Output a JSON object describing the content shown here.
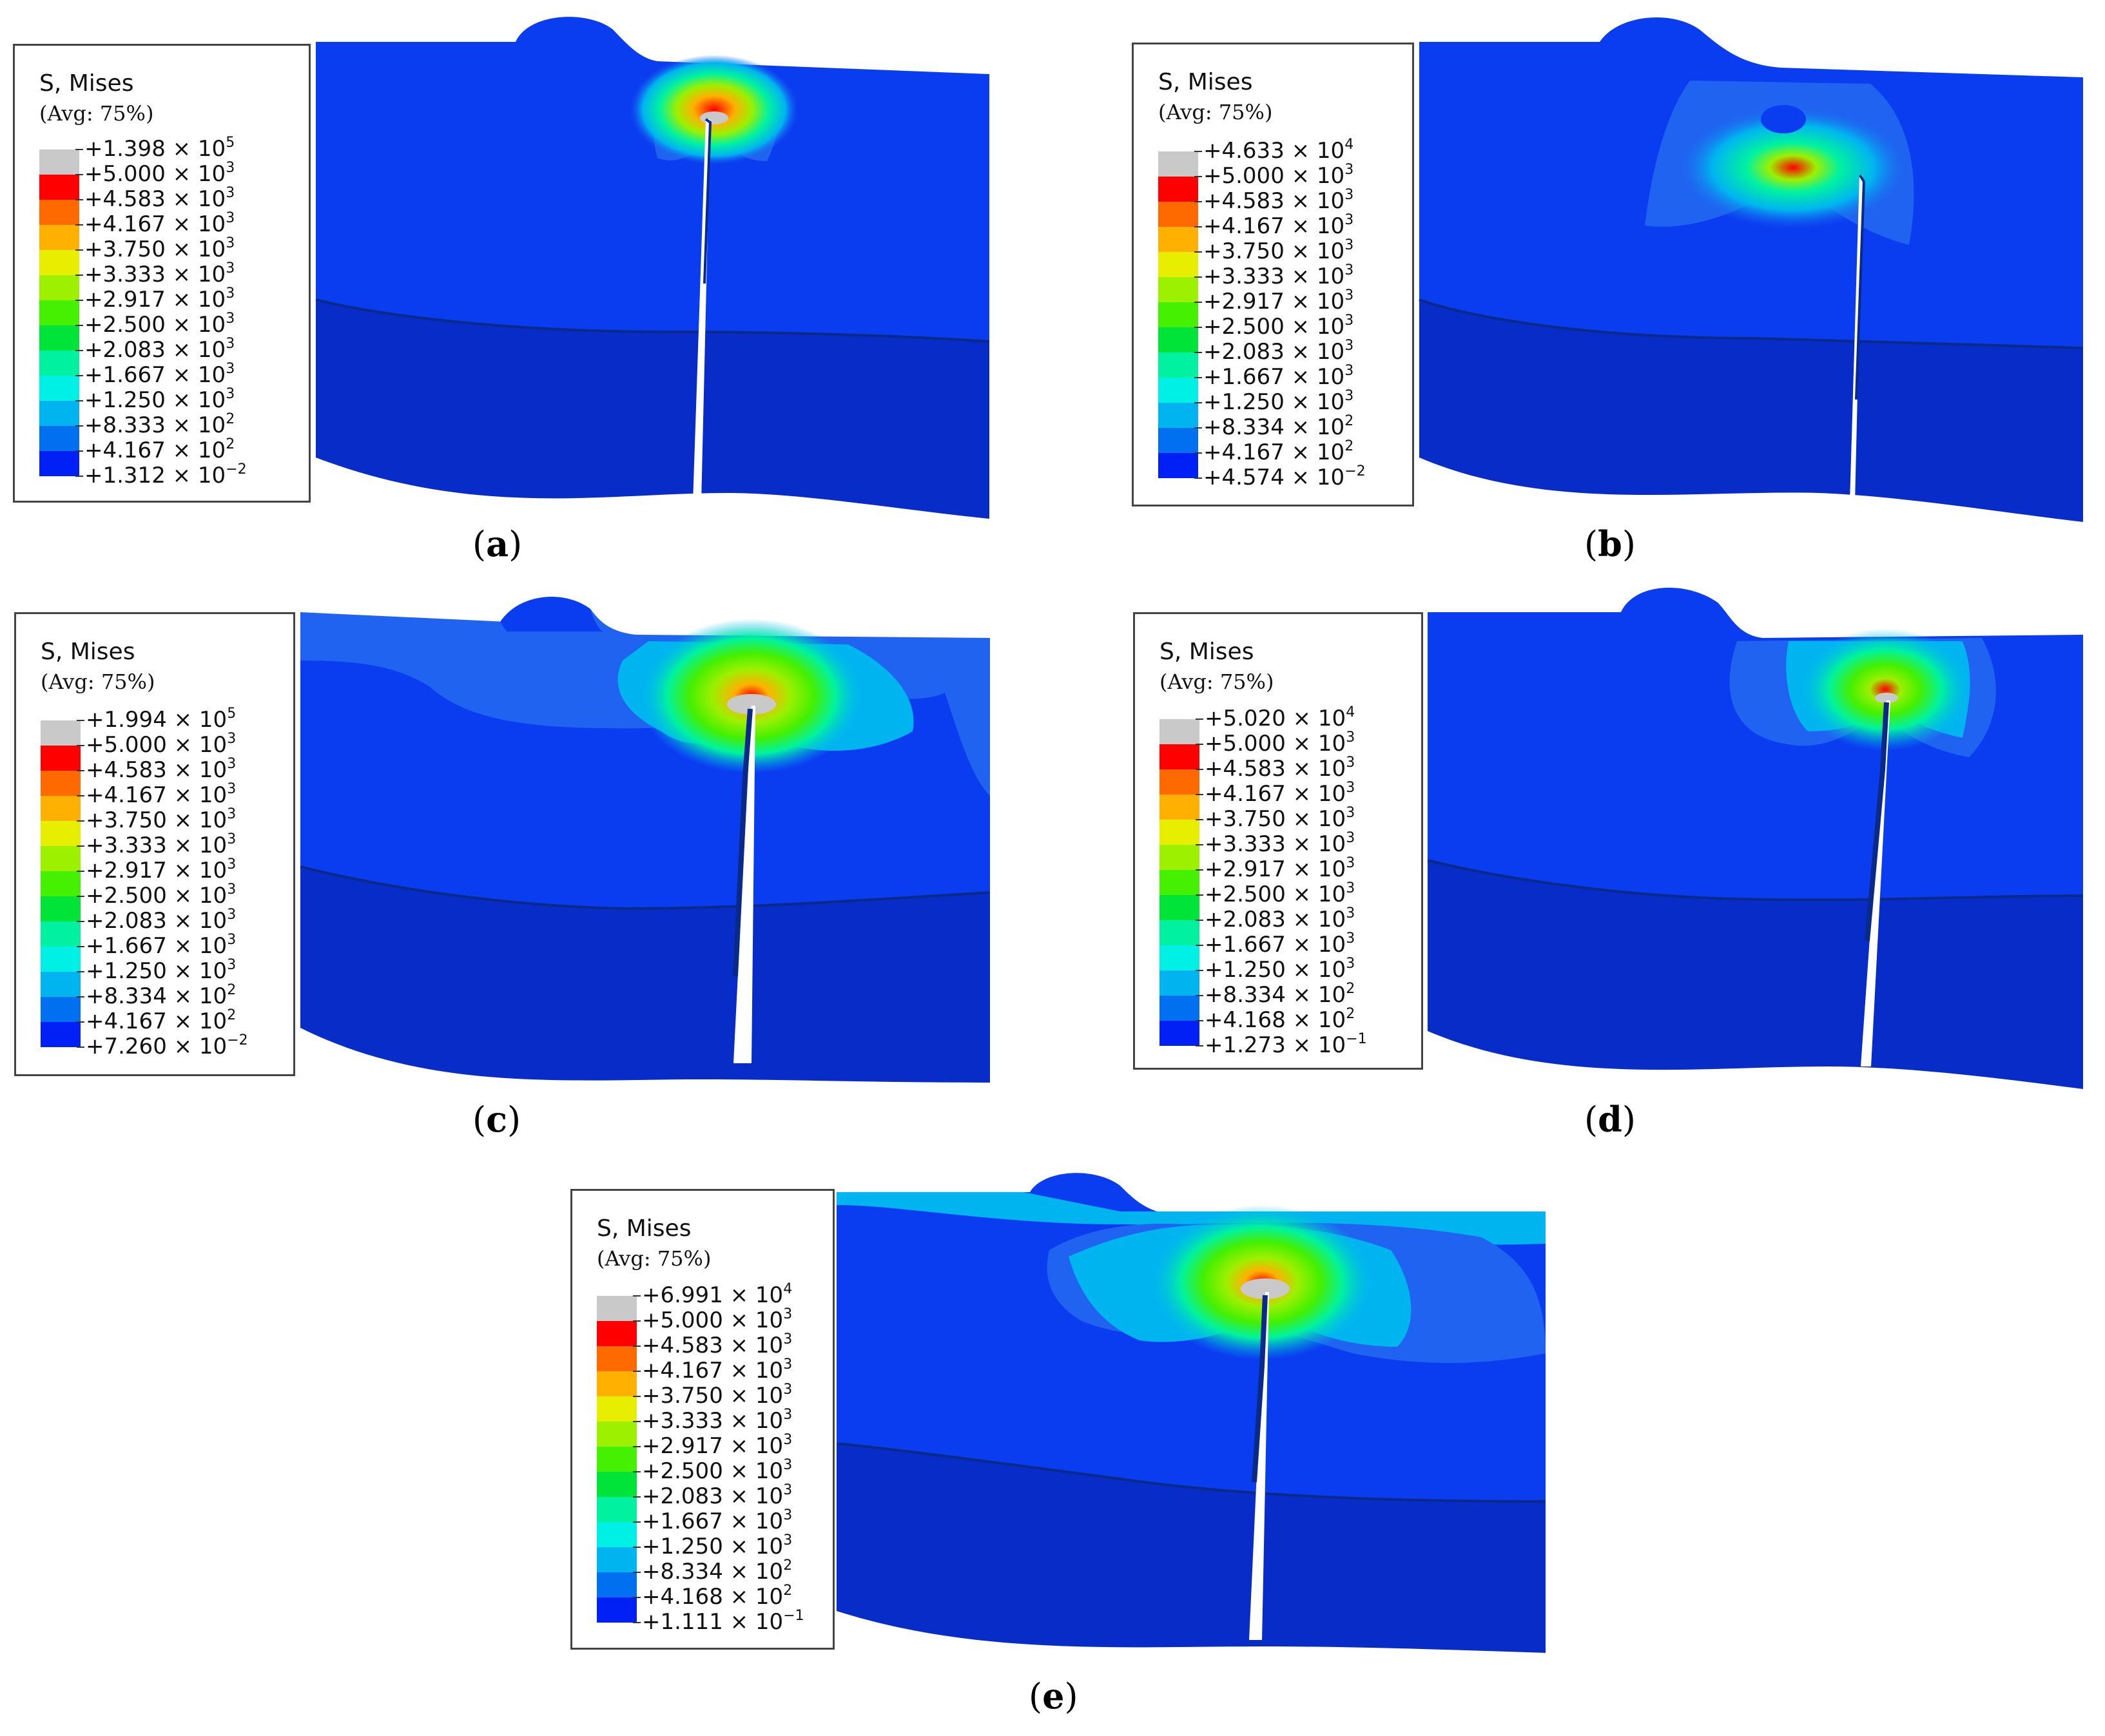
{
  "colors": {
    "top_plate": "#0a3df0",
    "top_plate_light": "#1f63f0",
    "bottom_plate": "#082cc8",
    "seam": "#0a2a8a",
    "bands": [
      "#c9c9c9",
      "#ff0000",
      "#ff6a00",
      "#ffb000",
      "#e8ee00",
      "#9cf000",
      "#45f000",
      "#00e43a",
      "#00f2a0",
      "#00f0e6",
      "#00b4f0",
      "#0070f0",
      "#0020f5"
    ]
  },
  "legend_header": {
    "title": "S, Mises",
    "avg": "(Avg: 75%)"
  },
  "panels": [
    {
      "caption": "a",
      "labels": [
        {
          "m": "+1.398",
          "e": "5"
        },
        {
          "m": "+5.000",
          "e": "3"
        },
        {
          "m": "+4.583",
          "e": "3"
        },
        {
          "m": "+4.167",
          "e": "3"
        },
        {
          "m": "+3.750",
          "e": "3"
        },
        {
          "m": "+3.333",
          "e": "3"
        },
        {
          "m": "+2.917",
          "e": "3"
        },
        {
          "m": "+2.500",
          "e": "3"
        },
        {
          "m": "+2.083",
          "e": "3"
        },
        {
          "m": "+1.667",
          "e": "3"
        },
        {
          "m": "+1.250",
          "e": "3"
        },
        {
          "m": "+8.333",
          "e": "2"
        },
        {
          "m": "+4.167",
          "e": "2"
        },
        {
          "m": "+1.312",
          "e": "−2"
        }
      ]
    },
    {
      "caption": "b",
      "labels": [
        {
          "m": "+4.633",
          "e": "4"
        },
        {
          "m": "+5.000",
          "e": "3"
        },
        {
          "m": "+4.583",
          "e": "3"
        },
        {
          "m": "+4.167",
          "e": "3"
        },
        {
          "m": "+3.750",
          "e": "3"
        },
        {
          "m": "+3.333",
          "e": "3"
        },
        {
          "m": "+2.917",
          "e": "3"
        },
        {
          "m": "+2.500",
          "e": "3"
        },
        {
          "m": "+2.083",
          "e": "3"
        },
        {
          "m": "+1.667",
          "e": "3"
        },
        {
          "m": "+1.250",
          "e": "3"
        },
        {
          "m": "+8.334",
          "e": "2"
        },
        {
          "m": "+4.167",
          "e": "2"
        },
        {
          "m": "+4.574",
          "e": "−2"
        }
      ]
    },
    {
      "caption": "c",
      "labels": [
        {
          "m": "+1.994",
          "e": "5"
        },
        {
          "m": "+5.000",
          "e": "3"
        },
        {
          "m": "+4.583",
          "e": "3"
        },
        {
          "m": "+4.167",
          "e": "3"
        },
        {
          "m": "+3.750",
          "e": "3"
        },
        {
          "m": "+3.333",
          "e": "3"
        },
        {
          "m": "+2.917",
          "e": "3"
        },
        {
          "m": "+2.500",
          "e": "3"
        },
        {
          "m": "+2.083",
          "e": "3"
        },
        {
          "m": "+1.667",
          "e": "3"
        },
        {
          "m": "+1.250",
          "e": "3"
        },
        {
          "m": "+8.334",
          "e": "2"
        },
        {
          "m": "+4.167",
          "e": "2"
        },
        {
          "m": "+7.260",
          "e": "−2"
        }
      ]
    },
    {
      "caption": "d",
      "labels": [
        {
          "m": "+5.020",
          "e": "4"
        },
        {
          "m": "+5.000",
          "e": "3"
        },
        {
          "m": "+4.583",
          "e": "3"
        },
        {
          "m": "+4.167",
          "e": "3"
        },
        {
          "m": "+3.750",
          "e": "3"
        },
        {
          "m": "+3.333",
          "e": "3"
        },
        {
          "m": "+2.917",
          "e": "3"
        },
        {
          "m": "+2.500",
          "e": "3"
        },
        {
          "m": "+2.083",
          "e": "3"
        },
        {
          "m": "+1.667",
          "e": "3"
        },
        {
          "m": "+1.250",
          "e": "3"
        },
        {
          "m": "+8.334",
          "e": "2"
        },
        {
          "m": "+4.168",
          "e": "2"
        },
        {
          "m": "+1.273",
          "e": "−1"
        }
      ]
    },
    {
      "caption": "e",
      "labels": [
        {
          "m": "+6.991",
          "e": "4"
        },
        {
          "m": "+5.000",
          "e": "3"
        },
        {
          "m": "+4.583",
          "e": "3"
        },
        {
          "m": "+4.167",
          "e": "3"
        },
        {
          "m": "+3.750",
          "e": "3"
        },
        {
          "m": "+3.333",
          "e": "3"
        },
        {
          "m": "+2.917",
          "e": "3"
        },
        {
          "m": "+2.500",
          "e": "3"
        },
        {
          "m": "+2.083",
          "e": "3"
        },
        {
          "m": "+1.667",
          "e": "3"
        },
        {
          "m": "+1.250",
          "e": "3"
        },
        {
          "m": "+8.334",
          "e": "2"
        },
        {
          "m": "+4.168",
          "e": "2"
        },
        {
          "m": "+1.111",
          "e": "−1"
        }
      ]
    }
  ]
}
